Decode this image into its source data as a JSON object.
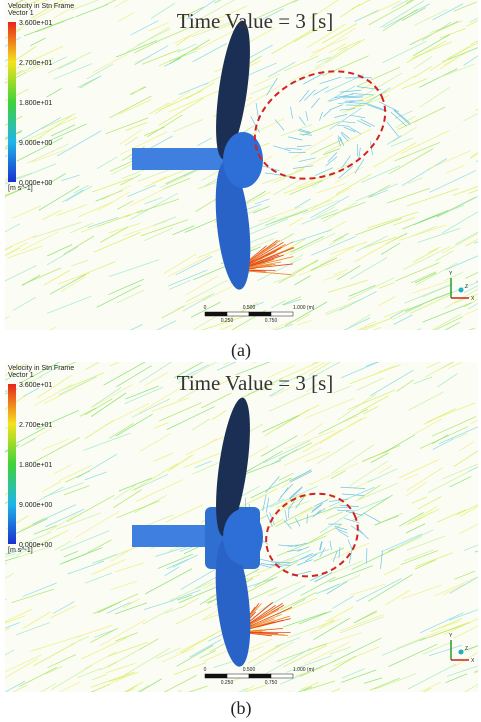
{
  "panels": [
    {
      "legend": {
        "title": "Velocity in Stn Frame",
        "subtitle": "Vector 1",
        "ticks": [
          "3.600e+01",
          "2.700e+01",
          "1.800e+01",
          "9.000e+00",
          "0.000e+00"
        ],
        "unit": "[m s^-1]"
      },
      "time_label": "Time Value = 3 [s]",
      "scale_bar": {
        "top": [
          "0",
          "0.500",
          "1.000 (m)"
        ],
        "bottom": [
          "0.250",
          "0.750"
        ]
      },
      "axes": [
        "Y",
        "X",
        "Z"
      ],
      "caption": "(a)"
    },
    {
      "legend": {
        "title": "Velocity in Stn Frame",
        "subtitle": "Vector 1",
        "ticks": [
          "3.600e+01",
          "2.700e+01",
          "1.800e+01",
          "9.000e+00",
          "0.000e+00"
        ],
        "unit": "[m s^-1]"
      },
      "time_label": "Time Value = 3 [s]",
      "scale_bar": {
        "top": [
          "0",
          "0.500",
          "1.000 (m)"
        ],
        "bottom": [
          "0.250",
          "0.750"
        ]
      },
      "axes": [
        "Y",
        "X",
        "Z"
      ],
      "caption": "(b)"
    }
  ]
}
